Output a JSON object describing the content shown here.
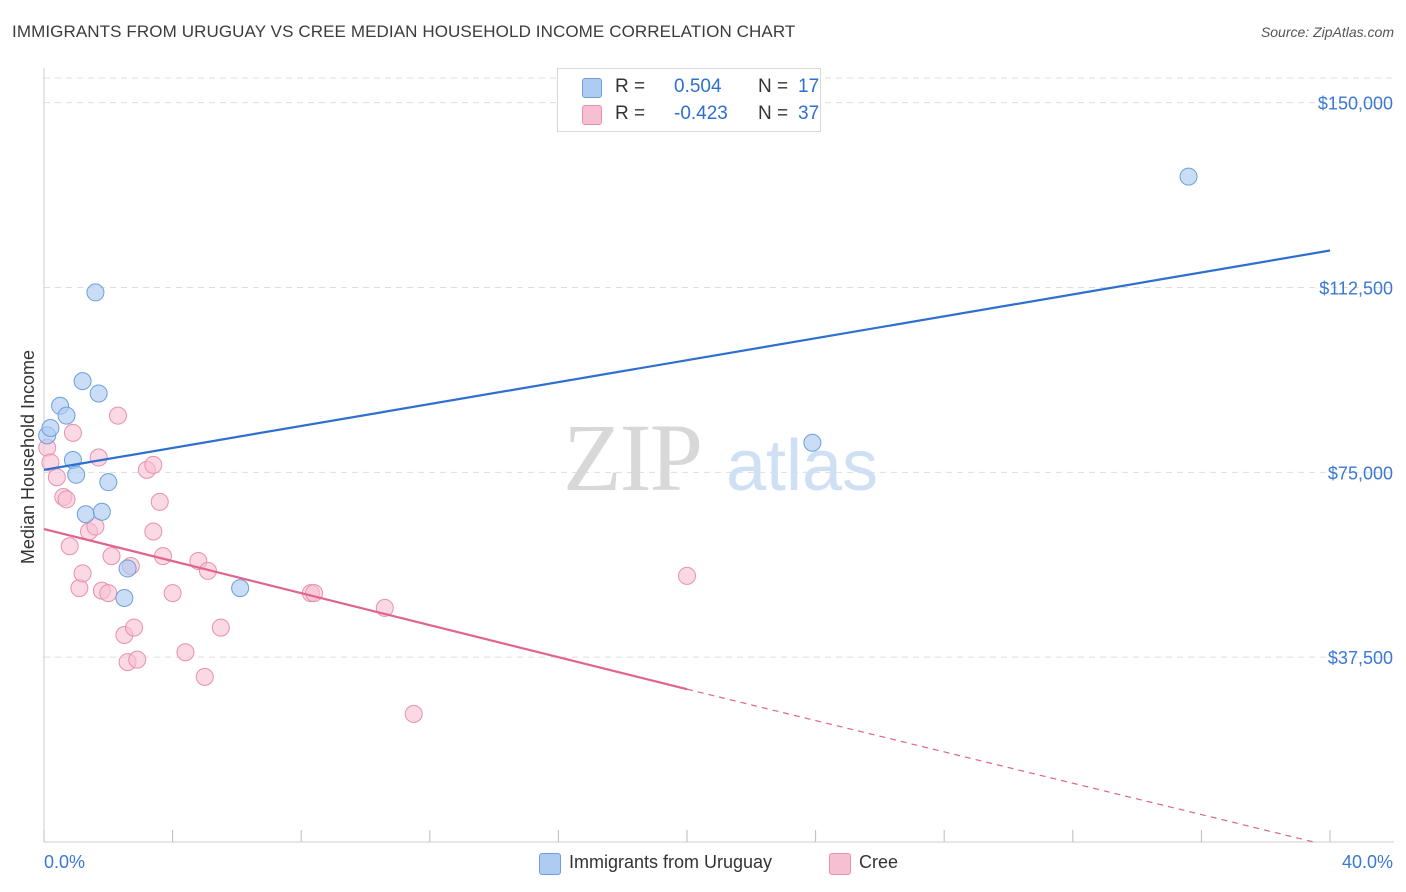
{
  "header": {
    "title": "IMMIGRANTS FROM URUGUAY VS CREE MEDIAN HOUSEHOLD INCOME CORRELATION CHART",
    "source": "Source: ZipAtlas.com"
  },
  "watermark": {
    "zip": "ZIP",
    "atlas": "atlas"
  },
  "legend": {
    "uruguay": {
      "r_label": "R =",
      "r_value": "0.504",
      "n_label": "N =",
      "n_value": "17",
      "color": "#aecbf3"
    },
    "cree": {
      "r_label": "R =",
      "r_value": "-0.423",
      "n_label": "N =",
      "n_value": "37",
      "color": "#f7bfd2"
    }
  },
  "bottom_legend": {
    "uruguay_label": "Immigrants from Uruguay",
    "cree_label": "Cree"
  },
  "colors": {
    "uruguay_fill": "#aecbf3",
    "uruguay_stroke": "#6e9fd9",
    "uruguay_line": "#2e6fd0",
    "cree_fill": "#f7bfd2",
    "cree_stroke": "#e890b0",
    "cree_line": "#e0648f",
    "tick_label": "#3a78d4",
    "grid": "#dddddd"
  },
  "chart_data": {
    "type": "scatter",
    "title": "IMMIGRANTS FROM URUGUAY VS CREE MEDIAN HOUSEHOLD INCOME CORRELATION CHART",
    "xlabel": "",
    "ylabel": "Median Household Income",
    "xlim": [
      0,
      40
    ],
    "ylim": [
      0,
      155000
    ],
    "x_tick_labels": [
      "0.0%",
      "40.0%"
    ],
    "y_ticks": [
      37500,
      75000,
      112500,
      150000
    ],
    "y_tick_labels": [
      "$37,500",
      "$75,000",
      "$112,500",
      "$150,000"
    ],
    "grid": true,
    "legend_position": "top-center",
    "series": [
      {
        "name": "Immigrants from Uruguay",
        "points": [
          {
            "x": 0.1,
            "y": 82500
          },
          {
            "x": 0.2,
            "y": 84000
          },
          {
            "x": 0.5,
            "y": 88500
          },
          {
            "x": 0.7,
            "y": 86500
          },
          {
            "x": 0.9,
            "y": 77500
          },
          {
            "x": 1.0,
            "y": 74500
          },
          {
            "x": 1.2,
            "y": 93500
          },
          {
            "x": 1.3,
            "y": 66500
          },
          {
            "x": 1.6,
            "y": 111500
          },
          {
            "x": 1.7,
            "y": 91000
          },
          {
            "x": 1.8,
            "y": 67000
          },
          {
            "x": 2.0,
            "y": 73000
          },
          {
            "x": 2.5,
            "y": 49500
          },
          {
            "x": 2.6,
            "y": 55500
          },
          {
            "x": 6.1,
            "y": 51500
          },
          {
            "x": 23.9,
            "y": 81000
          },
          {
            "x": 35.6,
            "y": 135000
          }
        ],
        "trend": {
          "x": [
            0,
            40
          ],
          "y": [
            75500,
            120000
          ]
        }
      },
      {
        "name": "Cree",
        "points": [
          {
            "x": 0.1,
            "y": 80000
          },
          {
            "x": 0.2,
            "y": 77000
          },
          {
            "x": 0.4,
            "y": 74000
          },
          {
            "x": 0.6,
            "y": 70000
          },
          {
            "x": 0.7,
            "y": 69500
          },
          {
            "x": 0.8,
            "y": 60000
          },
          {
            "x": 0.9,
            "y": 83000
          },
          {
            "x": 1.1,
            "y": 51500
          },
          {
            "x": 1.2,
            "y": 54500
          },
          {
            "x": 1.4,
            "y": 63000
          },
          {
            "x": 1.6,
            "y": 64000
          },
          {
            "x": 1.7,
            "y": 78000
          },
          {
            "x": 1.8,
            "y": 51000
          },
          {
            "x": 2.0,
            "y": 50500
          },
          {
            "x": 2.1,
            "y": 58000
          },
          {
            "x": 2.3,
            "y": 86500
          },
          {
            "x": 2.5,
            "y": 42000
          },
          {
            "x": 2.6,
            "y": 36500
          },
          {
            "x": 2.7,
            "y": 56000
          },
          {
            "x": 2.8,
            "y": 43500
          },
          {
            "x": 2.9,
            "y": 37000
          },
          {
            "x": 3.2,
            "y": 75500
          },
          {
            "x": 3.4,
            "y": 76500
          },
          {
            "x": 3.4,
            "y": 63000
          },
          {
            "x": 3.6,
            "y": 69000
          },
          {
            "x": 3.7,
            "y": 58000
          },
          {
            "x": 4.0,
            "y": 50500
          },
          {
            "x": 4.4,
            "y": 38500
          },
          {
            "x": 4.8,
            "y": 57000
          },
          {
            "x": 5.0,
            "y": 33500
          },
          {
            "x": 5.1,
            "y": 55000
          },
          {
            "x": 5.5,
            "y": 43500
          },
          {
            "x": 8.3,
            "y": 50500
          },
          {
            "x": 8.4,
            "y": 50500
          },
          {
            "x": 10.6,
            "y": 47500
          },
          {
            "x": 11.5,
            "y": 26000
          },
          {
            "x": 20.0,
            "y": 54000
          }
        ],
        "trend": {
          "x": [
            0,
            20
          ],
          "y": [
            63500,
            31000
          ]
        },
        "trend_dashed": {
          "x": [
            20,
            39.5
          ],
          "y": [
            31000,
            0
          ]
        }
      }
    ]
  }
}
